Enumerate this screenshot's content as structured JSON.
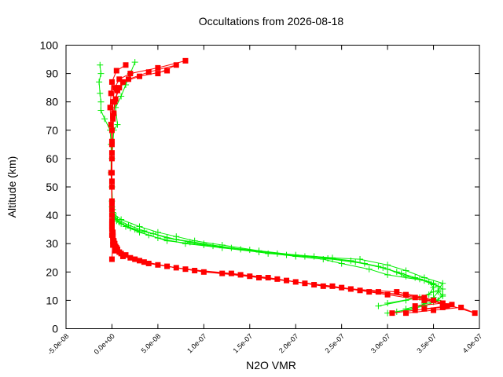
{
  "chart_data": {
    "type": "scatter",
    "title": "Occultations from 2026-08-18",
    "xlabel": "N2O VMR",
    "ylabel": "Altitude (km)",
    "xlim": [
      -5e-08,
      4e-07
    ],
    "ylim": [
      0,
      100
    ],
    "xticks": [
      "-5.0e-08",
      "0.0e+00",
      "5.0e-08",
      "1.0e-07",
      "1.5e-07",
      "2.0e-07",
      "2.5e-07",
      "3.0e-07",
      "3.5e-07",
      "4.0e-07"
    ],
    "yticks": [
      "0",
      "10",
      "20",
      "30",
      "40",
      "50",
      "60",
      "70",
      "80",
      "90",
      "100"
    ],
    "grid": false,
    "legend": "none",
    "series": [
      {
        "color": "#00ee00",
        "marker": "plus",
        "profiles": [
          [
            [
              3e-07,
              5.5
            ],
            [
              3.3e-07,
              7
            ],
            [
              3.4e-07,
              9
            ],
            [
              3.5e-07,
              11
            ],
            [
              3.55e-07,
              13
            ],
            [
              3.55e-07,
              15
            ],
            [
              3.4e-07,
              17
            ],
            [
              3e-07,
              19
            ],
            [
              2.8e-07,
              21
            ],
            [
              2.5e-07,
              23
            ],
            [
              2.3e-07,
              24.5
            ],
            [
              2e-07,
              25.5
            ],
            [
              1.6e-07,
              27
            ],
            [
              1.2e-07,
              28.5
            ],
            [
              8e-08,
              30
            ],
            [
              5e-08,
              32
            ],
            [
              3e-08,
              34
            ],
            [
              1.5e-08,
              36
            ],
            [
              5e-09,
              38
            ],
            [
              1e-09,
              40
            ],
            [
              0.0,
              45
            ],
            [
              -1e-09,
              55
            ],
            [
              -1e-09,
              65
            ],
            [
              -2e-09,
              70
            ],
            [
              -8e-09,
              74
            ],
            [
              -1.2e-08,
              77
            ],
            [
              -1.2e-08,
              80
            ],
            [
              -1.3e-08,
              83
            ],
            [
              -1.4e-08,
              87
            ],
            [
              -1.2e-08,
              90
            ],
            [
              -1.3e-08,
              93
            ]
          ],
          [
            [
              3.1e-07,
              6
            ],
            [
              3.4e-07,
              8
            ],
            [
              3.55e-07,
              10
            ],
            [
              3.6e-07,
              12
            ],
            [
              3.6e-07,
              14
            ],
            [
              3.5e-07,
              16
            ],
            [
              3.3e-07,
              18
            ],
            [
              3.1e-07,
              20
            ],
            [
              2.9e-07,
              22
            ],
            [
              2.6e-07,
              24
            ],
            [
              2.2e-07,
              25.5
            ],
            [
              1.8e-07,
              26.5
            ],
            [
              1.4e-07,
              28
            ],
            [
              1e-07,
              29.5
            ],
            [
              6e-08,
              31
            ],
            [
              4e-08,
              33
            ],
            [
              2e-08,
              35.5
            ],
            [
              8e-09,
              37.5
            ],
            [
              2e-09,
              39.5
            ],
            [
              1e-09,
              42
            ],
            [
              0.0,
              50
            ],
            [
              0.0,
              60
            ],
            [
              2e-09,
              70
            ],
            [
              6e-09,
              72
            ],
            [
              4e-09,
              78
            ],
            [
              1e-08,
              82
            ],
            [
              1.5e-08,
              86
            ],
            [
              2e-08,
              90
            ],
            [
              2.5e-08,
              94
            ]
          ],
          [
            [
              3.2e-07,
              7
            ],
            [
              3.5e-07,
              9.5
            ],
            [
              3.6e-07,
              11.5
            ],
            [
              3.55e-07,
              13.5
            ],
            [
              3.6e-07,
              16
            ],
            [
              3.4e-07,
              18
            ],
            [
              3.2e-07,
              20.5
            ],
            [
              3e-07,
              22.5
            ],
            [
              2.7e-07,
              24.5
            ],
            [
              2.4e-07,
              25
            ],
            [
              2e-07,
              26
            ],
            [
              1.6e-07,
              27.5
            ],
            [
              1.2e-07,
              29.5
            ],
            [
              9e-08,
              31
            ],
            [
              7e-08,
              32.5
            ],
            [
              5e-08,
              34
            ],
            [
              3e-08,
              36
            ],
            [
              1e-08,
              38.5
            ],
            [
              2e-09,
              40.5
            ],
            [
              0.0,
              43
            ]
          ],
          [
            [
              2.9e-07,
              8
            ],
            [
              3.2e-07,
              10
            ],
            [
              3.45e-07,
              12
            ],
            [
              3.5e-07,
              14.5
            ],
            [
              3.45e-07,
              16.5
            ],
            [
              3.2e-07,
              18.5
            ],
            [
              3e-07,
              21
            ],
            [
              2.75e-07,
              23
            ],
            [
              2.4e-07,
              24.5
            ],
            [
              2.1e-07,
              25.5
            ],
            [
              1.7e-07,
              26.5
            ],
            [
              1.3e-07,
              28.5
            ],
            [
              1e-07,
              30
            ],
            [
              7e-08,
              31.5
            ],
            [
              4.5e-08,
              33.5
            ],
            [
              2.5e-08,
              35
            ],
            [
              1e-08,
              37
            ],
            [
              3e-09,
              39
            ],
            [
              1e-09,
              41
            ]
          ],
          [
            [
              3e-07,
              9
            ],
            [
              3.35e-07,
              11
            ],
            [
              3.5e-07,
              13
            ],
            [
              3.5e-07,
              15.5
            ],
            [
              3.35e-07,
              17.5
            ],
            [
              3.15e-07,
              19.5
            ],
            [
              2.95e-07,
              21.5
            ],
            [
              2.65e-07,
              23.5
            ],
            [
              2.35e-07,
              24.8
            ],
            [
              1.9e-07,
              26
            ],
            [
              1.5e-07,
              27.8
            ],
            [
              1.1e-07,
              29.2
            ],
            [
              8.5e-08,
              30.5
            ],
            [
              6e-08,
              32
            ],
            [
              3.5e-08,
              34.5
            ],
            [
              1.8e-08,
              36.5
            ],
            [
              6e-09,
              38.5
            ],
            [
              1e-09,
              40.5
            ]
          ]
        ]
      },
      {
        "color": "#ff0000",
        "marker": "square",
        "profiles": [
          [
            [
              3.05e-07,
              5.5
            ],
            [
              3.3e-07,
              6.5
            ],
            [
              3.6e-07,
              7.5
            ],
            [
              3.7e-07,
              8.5
            ],
            [
              3.4e-07,
              10
            ],
            [
              3e-07,
              12
            ],
            [
              2.7e-07,
              13.5
            ],
            [
              2.3e-07,
              15
            ],
            [
              1.9e-07,
              17
            ],
            [
              1.5e-07,
              18.5
            ],
            [
              1e-07,
              20
            ],
            [
              6e-08,
              22
            ],
            [
              3e-08,
              24
            ],
            [
              1.5e-08,
              26
            ],
            [
              6e-09,
              28
            ],
            [
              3e-09,
              30
            ],
            [
              1e-09,
              33
            ],
            [
              0.0,
              36
            ],
            [
              0.0,
              40
            ],
            [
              0.0,
              50
            ],
            [
              0.0,
              60
            ],
            [
              0.0,
              70
            ],
            [
              1e-09,
              75
            ],
            [
              1e-09,
              80
            ],
            [
              3e-09,
              85
            ],
            [
              8e-09,
              88
            ],
            [
              2e-08,
              90
            ],
            [
              5e-08,
              92
            ],
            [
              8e-08,
              94.5
            ]
          ],
          [
            [
              3.2e-07,
              5.5
            ],
            [
              3.5e-07,
              6.5
            ],
            [
              3.8e-07,
              7.5
            ],
            [
              3.95e-07,
              5.5
            ],
            [
              3.6e-07,
              9
            ],
            [
              3.3e-07,
              11
            ],
            [
              2.9e-07,
              13
            ],
            [
              2.5e-07,
              14.5
            ],
            [
              2.1e-07,
              16
            ],
            [
              1.7e-07,
              18
            ],
            [
              1.3e-07,
              19.5
            ],
            [
              8e-08,
              21
            ],
            [
              4e-08,
              23
            ],
            [
              2e-08,
              25
            ],
            [
              8e-09,
              27
            ],
            [
              4e-09,
              29
            ],
            [
              2e-09,
              31
            ],
            [
              1e-09,
              34
            ],
            [
              0.0,
              38
            ],
            [
              0.0,
              45
            ],
            [
              -1e-09,
              55
            ],
            [
              0.0,
              65
            ],
            [
              -1e-09,
              72
            ],
            [
              -2e-09,
              78
            ],
            [
              -1e-09,
              83
            ],
            [
              0.0,
              87
            ],
            [
              5e-09,
              91
            ],
            [
              1.5e-08,
              93
            ]
          ],
          [
            [
              3.3e-07,
              8
            ],
            [
              3.6e-07,
              9
            ],
            [
              3.4e-07,
              11
            ],
            [
              3.1e-07,
              13
            ],
            [
              2.6e-07,
              14
            ],
            [
              2.2e-07,
              15.5
            ],
            [
              1.8e-07,
              17.5
            ],
            [
              1.4e-07,
              19
            ],
            [
              9e-08,
              20.5
            ],
            [
              5e-08,
              22.5
            ],
            [
              2.5e-08,
              24.5
            ],
            [
              1e-08,
              26.5
            ],
            [
              5e-09,
              28.5
            ],
            [
              2e-09,
              30.5
            ],
            [
              1e-09,
              32.5
            ],
            [
              0.0,
              35
            ],
            [
              0.0,
              42
            ],
            [
              0.0,
              52
            ],
            [
              0.0,
              62
            ],
            [
              1e-09,
              74
            ],
            [
              3e-09,
              80
            ],
            [
              6e-09,
              84
            ],
            [
              1.2e-08,
              87
            ],
            [
              3e-08,
              89
            ],
            [
              6e-08,
              91
            ]
          ],
          [
            [
              3.4e-07,
              7
            ],
            [
              3.65e-07,
              8
            ],
            [
              3.5e-07,
              10
            ],
            [
              3.2e-07,
              12
            ],
            [
              2.8e-07,
              13
            ],
            [
              2.4e-07,
              15
            ],
            [
              2e-07,
              16.5
            ],
            [
              1.6e-07,
              18
            ],
            [
              1.2e-07,
              19.5
            ],
            [
              7e-08,
              21.5
            ],
            [
              3.5e-08,
              23.5
            ],
            [
              1.2e-08,
              25.5
            ],
            [
              3e-09,
              27.5
            ],
            [
              1e-09,
              29.5
            ],
            [
              0.0,
              24.5
            ],
            [
              1e-09,
              31
            ],
            [
              0.0,
              33
            ],
            [
              0.0,
              37
            ],
            [
              0.0,
              44
            ],
            [
              0.0,
              55
            ],
            [
              0.0,
              66
            ],
            [
              2e-09,
              76
            ],
            [
              4e-09,
              81
            ],
            [
              8e-09,
              85
            ],
            [
              1.8e-08,
              88
            ],
            [
              4e-08,
              90.5
            ],
            [
              7e-08,
              93
            ],
            [
              5e-08,
              90
            ]
          ]
        ]
      }
    ]
  }
}
